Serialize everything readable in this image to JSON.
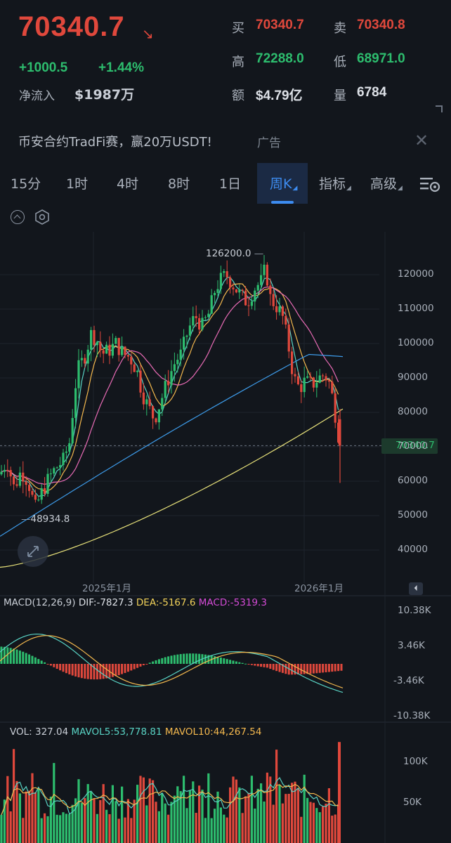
{
  "header": {
    "price": "70340.7",
    "change_abs": "+1000.5",
    "change_pct": "+1.44%",
    "inflow_label": "净流入",
    "inflow_value": "$1987万",
    "buy_label": "买",
    "buy_value": "70340.7",
    "sell_label": "卖",
    "sell_value": "70340.8",
    "high_label": "高",
    "high_value": "72288.0",
    "low_label": "低",
    "low_value": "68971.0",
    "amount_label": "额",
    "amount_value": "$4.79亿",
    "volume_label": "量",
    "volume_value": "6784"
  },
  "ad": {
    "text": "币安合约TradFi赛，赢20万USDT!",
    "tag": "广告"
  },
  "tabs": [
    {
      "label": "15分"
    },
    {
      "label": "1时"
    },
    {
      "label": "4时"
    },
    {
      "label": "8时"
    },
    {
      "label": "1日"
    },
    {
      "label": "周K"
    },
    {
      "label": "指标"
    },
    {
      "label": "高级"
    }
  ],
  "colors": {
    "up": "#2dbd6e",
    "down": "#e0483c",
    "ma_fast": "#59d3c4",
    "ma_mid": "#f3b84e",
    "ma_slow": "#e86bb5",
    "ma_long": "#3d9be9",
    "ma_longest": "#e8e27a"
  },
  "main_chart": {
    "y_ticks": [
      "120000",
      "110000",
      "100000",
      "90000",
      "80000",
      "70000",
      "60000",
      "50000",
      "40000"
    ],
    "x_labels": [
      "2025年1月",
      "2026年1月"
    ],
    "current_price_tag": "70340.7",
    "high_annotation": "126200.0",
    "low_annotation": "48934.8"
  },
  "macd": {
    "label": "MACD(12,26,9)",
    "dif": "DIF:-7827.3",
    "dea": "DEA:-5167.6",
    "macd": "MACD:-5319.3",
    "y_ticks": [
      "10.38K",
      "3.46K",
      "-3.46K",
      "-10.38K"
    ]
  },
  "vol": {
    "label": "VOL: 327.04",
    "mavol5": "MAVOL5:53,778.81",
    "mavol10": "MAVOL10:44,267.54",
    "y_ticks": [
      "100K",
      "50K"
    ]
  }
}
